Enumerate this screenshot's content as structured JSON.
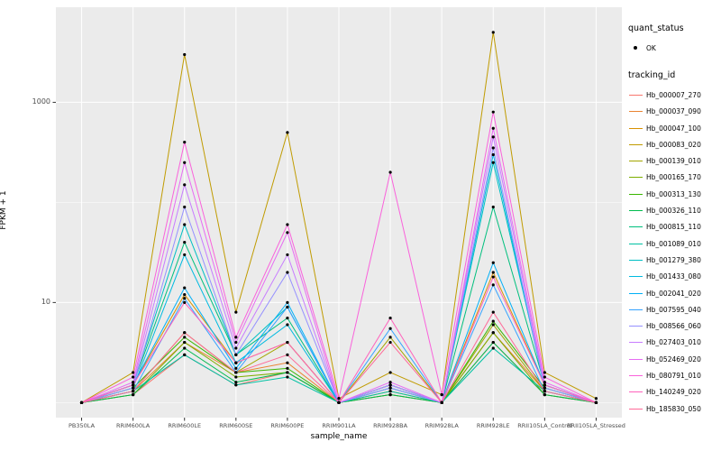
{
  "figure": {
    "background": "#FFFFFF",
    "panel_background": "#EBEBEB",
    "grid_color": "#FFFFFF",
    "tick_color": "#333333",
    "tick_text_color": "#4D4D4D",
    "point_color": "#000000"
  },
  "axes": {
    "x_title": "sample_name",
    "y_title": "FPKM + 1",
    "y_scale": "log10",
    "y_ticks": [
      {
        "label": "10",
        "value": 10
      },
      {
        "label": "1000",
        "value": 1000
      }
    ],
    "y_minor_gridlines": [
      1,
      100
    ]
  },
  "legend": {
    "quant_status_title": "quant_status",
    "quant_status_items": [
      {
        "label": "OK",
        "shape": "point",
        "color": "#000000"
      }
    ],
    "tracking_id_title": "tracking_id"
  },
  "chart_data": {
    "type": "line",
    "title": "",
    "xlabel": "sample_name",
    "ylabel": "FPKM + 1",
    "y_scale": "log10",
    "legend_position": "right",
    "grid": true,
    "point_color": "#000000",
    "categories": [
      "PB350LA",
      "RRIM600LA",
      "RRIM600LE",
      "RRIM600SE",
      "RRIM600PE",
      "RRIM901LA",
      "RRIM928BA",
      "RRIM928LA",
      "RRIM928LE",
      "RRII105LA_Control",
      "RRII105LA_Stressed"
    ],
    "series": [
      {
        "name": "Hb_000007_270",
        "color": "#F8766D",
        "values": [
          1,
          1.2,
          3,
          1.5,
          2,
          1,
          1.2,
          1,
          4,
          1.2,
          1
        ]
      },
      {
        "name": "Hb_000037_090",
        "color": "#EA8331",
        "values": [
          1,
          1.3,
          4,
          2,
          2.5,
          1,
          1.3,
          1,
          5,
          1.3,
          1
        ]
      },
      {
        "name": "Hb_000047_100",
        "color": "#D89000",
        "values": [
          1,
          1.5,
          12,
          2.5,
          4,
          1,
          1.5,
          1,
          20,
          1.5,
          1
        ]
      },
      {
        "name": "Hb_000083_020",
        "color": "#C09B00",
        "values": [
          1,
          2,
          3000,
          8,
          500,
          1.1,
          2,
          1.2,
          5000,
          2,
          1.1
        ]
      },
      {
        "name": "Hb_000139_010",
        "color": "#A3A500",
        "values": [
          1,
          1.3,
          5,
          2,
          4,
          1,
          4.5,
          1,
          6,
          1.3,
          1
        ]
      },
      {
        "name": "Hb_000165_170",
        "color": "#7CAE00",
        "values": [
          1,
          1.2,
          4,
          1.8,
          2,
          1,
          1.2,
          1,
          5,
          1.2,
          1
        ]
      },
      {
        "name": "Hb_000313_130",
        "color": "#39B600",
        "values": [
          1,
          1.4,
          4.5,
          2,
          2.2,
          1,
          1.4,
          1,
          6.5,
          1.4,
          1
        ]
      },
      {
        "name": "Hb_000326_110",
        "color": "#00BB4E",
        "values": [
          1,
          1.2,
          3.5,
          1.6,
          2,
          1,
          1.2,
          1,
          4,
          1.2,
          1
        ]
      },
      {
        "name": "Hb_000815_110",
        "color": "#00BF7D",
        "values": [
          1,
          1.5,
          40,
          3,
          7,
          1,
          1.5,
          1,
          90,
          1.5,
          1
        ]
      },
      {
        "name": "Hb_001089_010",
        "color": "#00C1A3",
        "values": [
          1,
          1.3,
          3,
          1.5,
          1.8,
          1,
          1.3,
          1,
          3.5,
          1.3,
          1
        ]
      },
      {
        "name": "Hb_001279_380",
        "color": "#00BFC4",
        "values": [
          1,
          1.5,
          60,
          3,
          9,
          1,
          1.5,
          1,
          250,
          1.5,
          1
        ]
      },
      {
        "name": "Hb_001433_080",
        "color": "#00BAE0",
        "values": [
          1,
          1.4,
          30,
          2.5,
          6,
          1,
          1.4,
          1,
          300,
          1.4,
          1
        ]
      },
      {
        "name": "Hb_002041_020",
        "color": "#00B0F6",
        "values": [
          1,
          1.5,
          14,
          2.2,
          10,
          1,
          1.5,
          1,
          25,
          1.5,
          1
        ]
      },
      {
        "name": "Hb_007595_040",
        "color": "#35A2FF",
        "values": [
          1,
          1.3,
          11,
          2,
          9,
          1,
          5.5,
          1,
          15,
          1.3,
          1
        ]
      },
      {
        "name": "Hb_008566_060",
        "color": "#9590FF",
        "values": [
          1,
          1.4,
          90,
          3,
          20,
          1,
          1.4,
          1,
          350,
          1.4,
          1
        ]
      },
      {
        "name": "Hb_027403_010",
        "color": "#C77CFF",
        "values": [
          1,
          1.5,
          150,
          3.5,
          30,
          1,
          1.5,
          1,
          450,
          1.5,
          1
        ]
      },
      {
        "name": "Hb_052469_020",
        "color": "#E76BF3",
        "values": [
          1,
          1.6,
          250,
          4,
          50,
          1,
          1.6,
          1,
          550,
          1.6,
          1
        ]
      },
      {
        "name": "Hb_080791_010",
        "color": "#FA62DB",
        "values": [
          1,
          1.8,
          400,
          4.5,
          60,
          1.1,
          200,
          1.2,
          800,
          1.8,
          1
        ]
      },
      {
        "name": "Hb_140249_020",
        "color": "#FF62BC",
        "values": [
          1,
          1.5,
          10,
          2.5,
          4,
          1,
          7,
          1,
          18,
          1.5,
          1
        ]
      },
      {
        "name": "Hb_185830_050",
        "color": "#FF6A98",
        "values": [
          1,
          1.3,
          5,
          2,
          3,
          1,
          4,
          1,
          8,
          1.3,
          1
        ]
      }
    ]
  }
}
